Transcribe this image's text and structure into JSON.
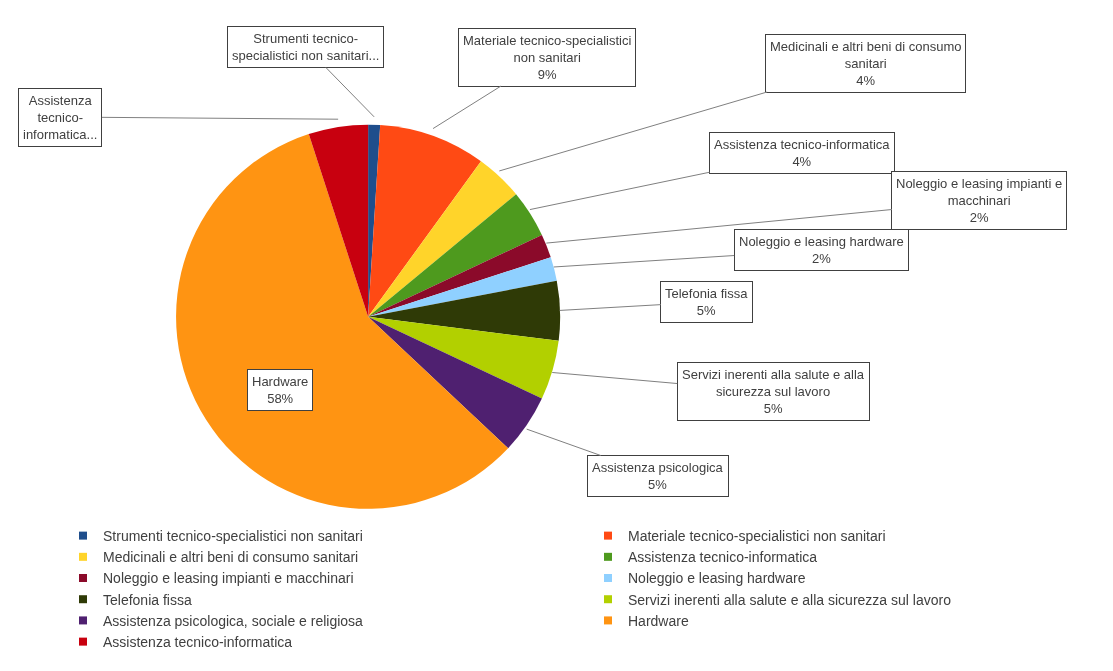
{
  "chart_data": {
    "type": "pie",
    "categories": [
      "Strumenti tecnico-specialistici non sanitari",
      "Materiale tecnico-specialistici non sanitari",
      "Medicinali e altri beni di consumo sanitari",
      "Assistenza tecnico-informatica",
      "Noleggio e leasing impianti e macchinari",
      "Noleggio e leasing hardware",
      "Telefonia fissa",
      "Servizi inerenti alla salute e alla sicurezza sul lavoro",
      "Assistenza psicologica, sociale e religiosa",
      "Hardware",
      "Assistenza tecnico-informatica"
    ],
    "values": [
      1,
      9,
      4,
      4,
      2,
      2,
      5,
      5,
      5,
      58,
      5
    ],
    "colors": [
      "#1f4e8c",
      "#ff4a14",
      "#ffd42a",
      "#4e9a1e",
      "#8b0a2a",
      "#8fd0ff",
      "#2f3a06",
      "#b2d000",
      "#4f2070",
      "#ff9412",
      "#c8000f"
    ],
    "value_labels": [
      "Strumenti tecnico-\nspecialistici non sanitari...",
      "Materiale tecnico-specialistici\nnon sanitari\n9%",
      "Medicinali e altri beni di consumo\nsanitari\n4%",
      "Assistenza tecnico-informatica\n4%",
      "Noleggio e leasing impianti e\nmacchinari\n2%",
      "Noleggio e leasing hardware\n2%",
      "Telefonia fissa\n5%",
      "Servizi inerenti alla salute e alla\nsicurezza sul lavoro\n5%",
      "Assistenza psicologica\n5%",
      "Hardware\n58%",
      "Assistenza\ntecnico-\ninformatica..."
    ],
    "legend": "bottom"
  }
}
